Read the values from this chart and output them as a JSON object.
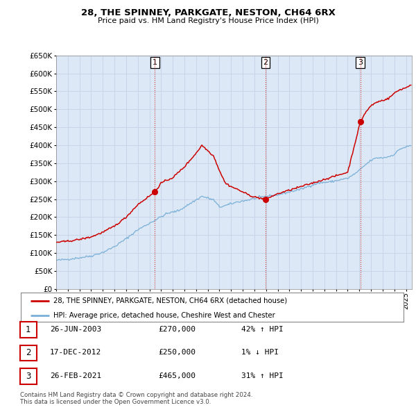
{
  "title": "28, THE SPINNEY, PARKGATE, NESTON, CH64 6RX",
  "subtitle": "Price paid vs. HM Land Registry's House Price Index (HPI)",
  "ylim": [
    0,
    650000
  ],
  "yticks": [
    0,
    50000,
    100000,
    150000,
    200000,
    250000,
    300000,
    350000,
    400000,
    450000,
    500000,
    550000,
    600000,
    650000
  ],
  "red_line_color": "#cc0000",
  "blue_line_color": "#7ab0d8",
  "grid_color": "#c8d4e8",
  "plot_bg_color": "#dce8f5",
  "legend_label_red": "28, THE SPINNEY, PARKGATE, NESTON, CH64 6RX (detached house)",
  "legend_label_blue": "HPI: Average price, detached house, Cheshire West and Chester",
  "sale_t": [
    2003.458,
    2012.958,
    2021.083
  ],
  "sale_p": [
    270000,
    250000,
    465000
  ],
  "table_rows": [
    [
      "1",
      "26-JUN-2003",
      "£270,000",
      "42% ↑ HPI"
    ],
    [
      "2",
      "17-DEC-2012",
      "£250,000",
      "1% ↓ HPI"
    ],
    [
      "3",
      "26-FEB-2021",
      "£465,000",
      "31% ↑ HPI"
    ]
  ],
  "footer": "Contains HM Land Registry data © Crown copyright and database right 2024.\nThis data is licensed under the Open Government Licence v3.0.",
  "hpi_anchors_t": [
    1995.0,
    1996.0,
    1997.0,
    1998.0,
    1999.0,
    2000.0,
    2001.0,
    2002.0,
    2003.5,
    2004.5,
    2005.5,
    2006.5,
    2007.5,
    2008.5,
    2009.0,
    2009.5,
    2010.5,
    2011.5,
    2012.0,
    2013.0,
    2014.0,
    2015.0,
    2016.0,
    2017.0,
    2017.5,
    2018.5,
    2019.5,
    2020.0,
    2020.5,
    2021.0,
    2021.5,
    2022.0,
    2022.5,
    2023.0,
    2023.5,
    2024.0,
    2024.5,
    2025.5
  ],
  "hpi_anchors_v": [
    80000,
    83000,
    87000,
    92000,
    102000,
    118000,
    140000,
    165000,
    192000,
    210000,
    218000,
    238000,
    258000,
    248000,
    228000,
    232000,
    242000,
    248000,
    252000,
    258000,
    262000,
    270000,
    278000,
    290000,
    295000,
    298000,
    305000,
    308000,
    318000,
    330000,
    345000,
    358000,
    365000,
    365000,
    368000,
    375000,
    390000,
    400000
  ],
  "red_anchors_t": [
    1995.0,
    1996.0,
    1997.0,
    1998.0,
    1999.0,
    2000.0,
    2001.0,
    2002.0,
    2003.458,
    2004.0,
    2005.0,
    2006.0,
    2007.0,
    2007.5,
    2008.0,
    2008.5,
    2009.0,
    2009.5,
    2010.0,
    2010.5,
    2011.0,
    2011.5,
    2012.0,
    2012.958,
    2013.5,
    2014.0,
    2015.0,
    2016.0,
    2017.0,
    2018.0,
    2019.0,
    2020.0,
    2021.083,
    2021.5,
    2022.0,
    2022.5,
    2023.0,
    2023.5,
    2024.0,
    2024.5,
    2025.0,
    2025.5
  ],
  "red_anchors_v": [
    130000,
    133000,
    138000,
    145000,
    158000,
    175000,
    200000,
    235000,
    270000,
    295000,
    310000,
    340000,
    378000,
    400000,
    385000,
    370000,
    330000,
    295000,
    285000,
    278000,
    270000,
    262000,
    256000,
    250000,
    258000,
    265000,
    275000,
    285000,
    295000,
    305000,
    315000,
    325000,
    465000,
    490000,
    510000,
    520000,
    525000,
    530000,
    545000,
    555000,
    560000,
    570000
  ]
}
